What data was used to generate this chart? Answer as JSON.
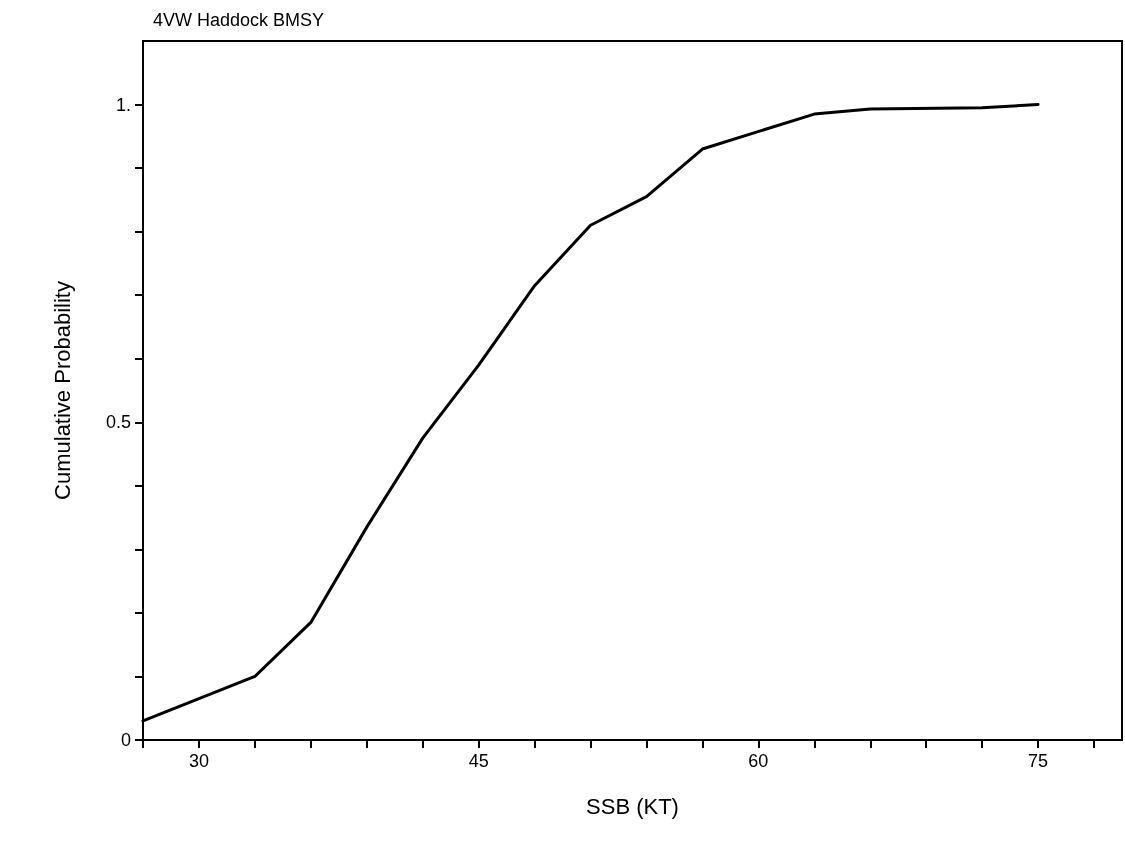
{
  "chart_data": {
    "type": "line",
    "title": "4VW Haddock BMSY",
    "xlabel": "SSB (KT)",
    "ylabel": "Cumulative Probability",
    "x": [
      27,
      33,
      36,
      39,
      42,
      45,
      48,
      51,
      54,
      57,
      63,
      66,
      72,
      75
    ],
    "series": [
      {
        "color": "#000000",
        "values": [
          0.03,
          0.1,
          0.185,
          0.335,
          0.475,
          0.59,
          0.715,
          0.81,
          0.855,
          0.93,
          0.985,
          0.993,
          0.995,
          1.0
        ]
      }
    ],
    "xlim": [
      27,
      79.5
    ],
    "xticks": [
      {
        "value": 27,
        "label": null
      },
      30,
      {
        "value": 33,
        "label": null
      },
      {
        "value": 36,
        "label": null
      },
      {
        "value": 39,
        "label": null
      },
      {
        "value": 42,
        "label": null
      },
      45,
      {
        "value": 48,
        "label": null
      },
      {
        "value": 51,
        "label": null
      },
      {
        "value": 54,
        "label": null
      },
      {
        "value": 57,
        "label": null
      },
      60,
      {
        "value": 63,
        "label": null
      },
      {
        "value": 66,
        "label": null
      },
      {
        "value": 69,
        "label": null
      },
      {
        "value": 72,
        "label": null
      },
      75,
      {
        "value": 78,
        "label": null
      }
    ],
    "ylim": [
      0,
      1.1
    ],
    "yticks": [
      0,
      {
        "value": 0.1,
        "label": null
      },
      {
        "value": 0.2,
        "label": null
      },
      {
        "value": 0.3,
        "label": null
      },
      {
        "value": 0.4,
        "label": null
      },
      0.5,
      {
        "value": 0.6,
        "label": null
      },
      {
        "value": 0.7,
        "label": null
      },
      {
        "value": 0.8,
        "label": null
      },
      {
        "value": 0.9,
        "label": null
      },
      {
        "value": 1,
        "label": "1."
      }
    ],
    "grid": false,
    "marker": "none",
    "line_style": "solid"
  }
}
